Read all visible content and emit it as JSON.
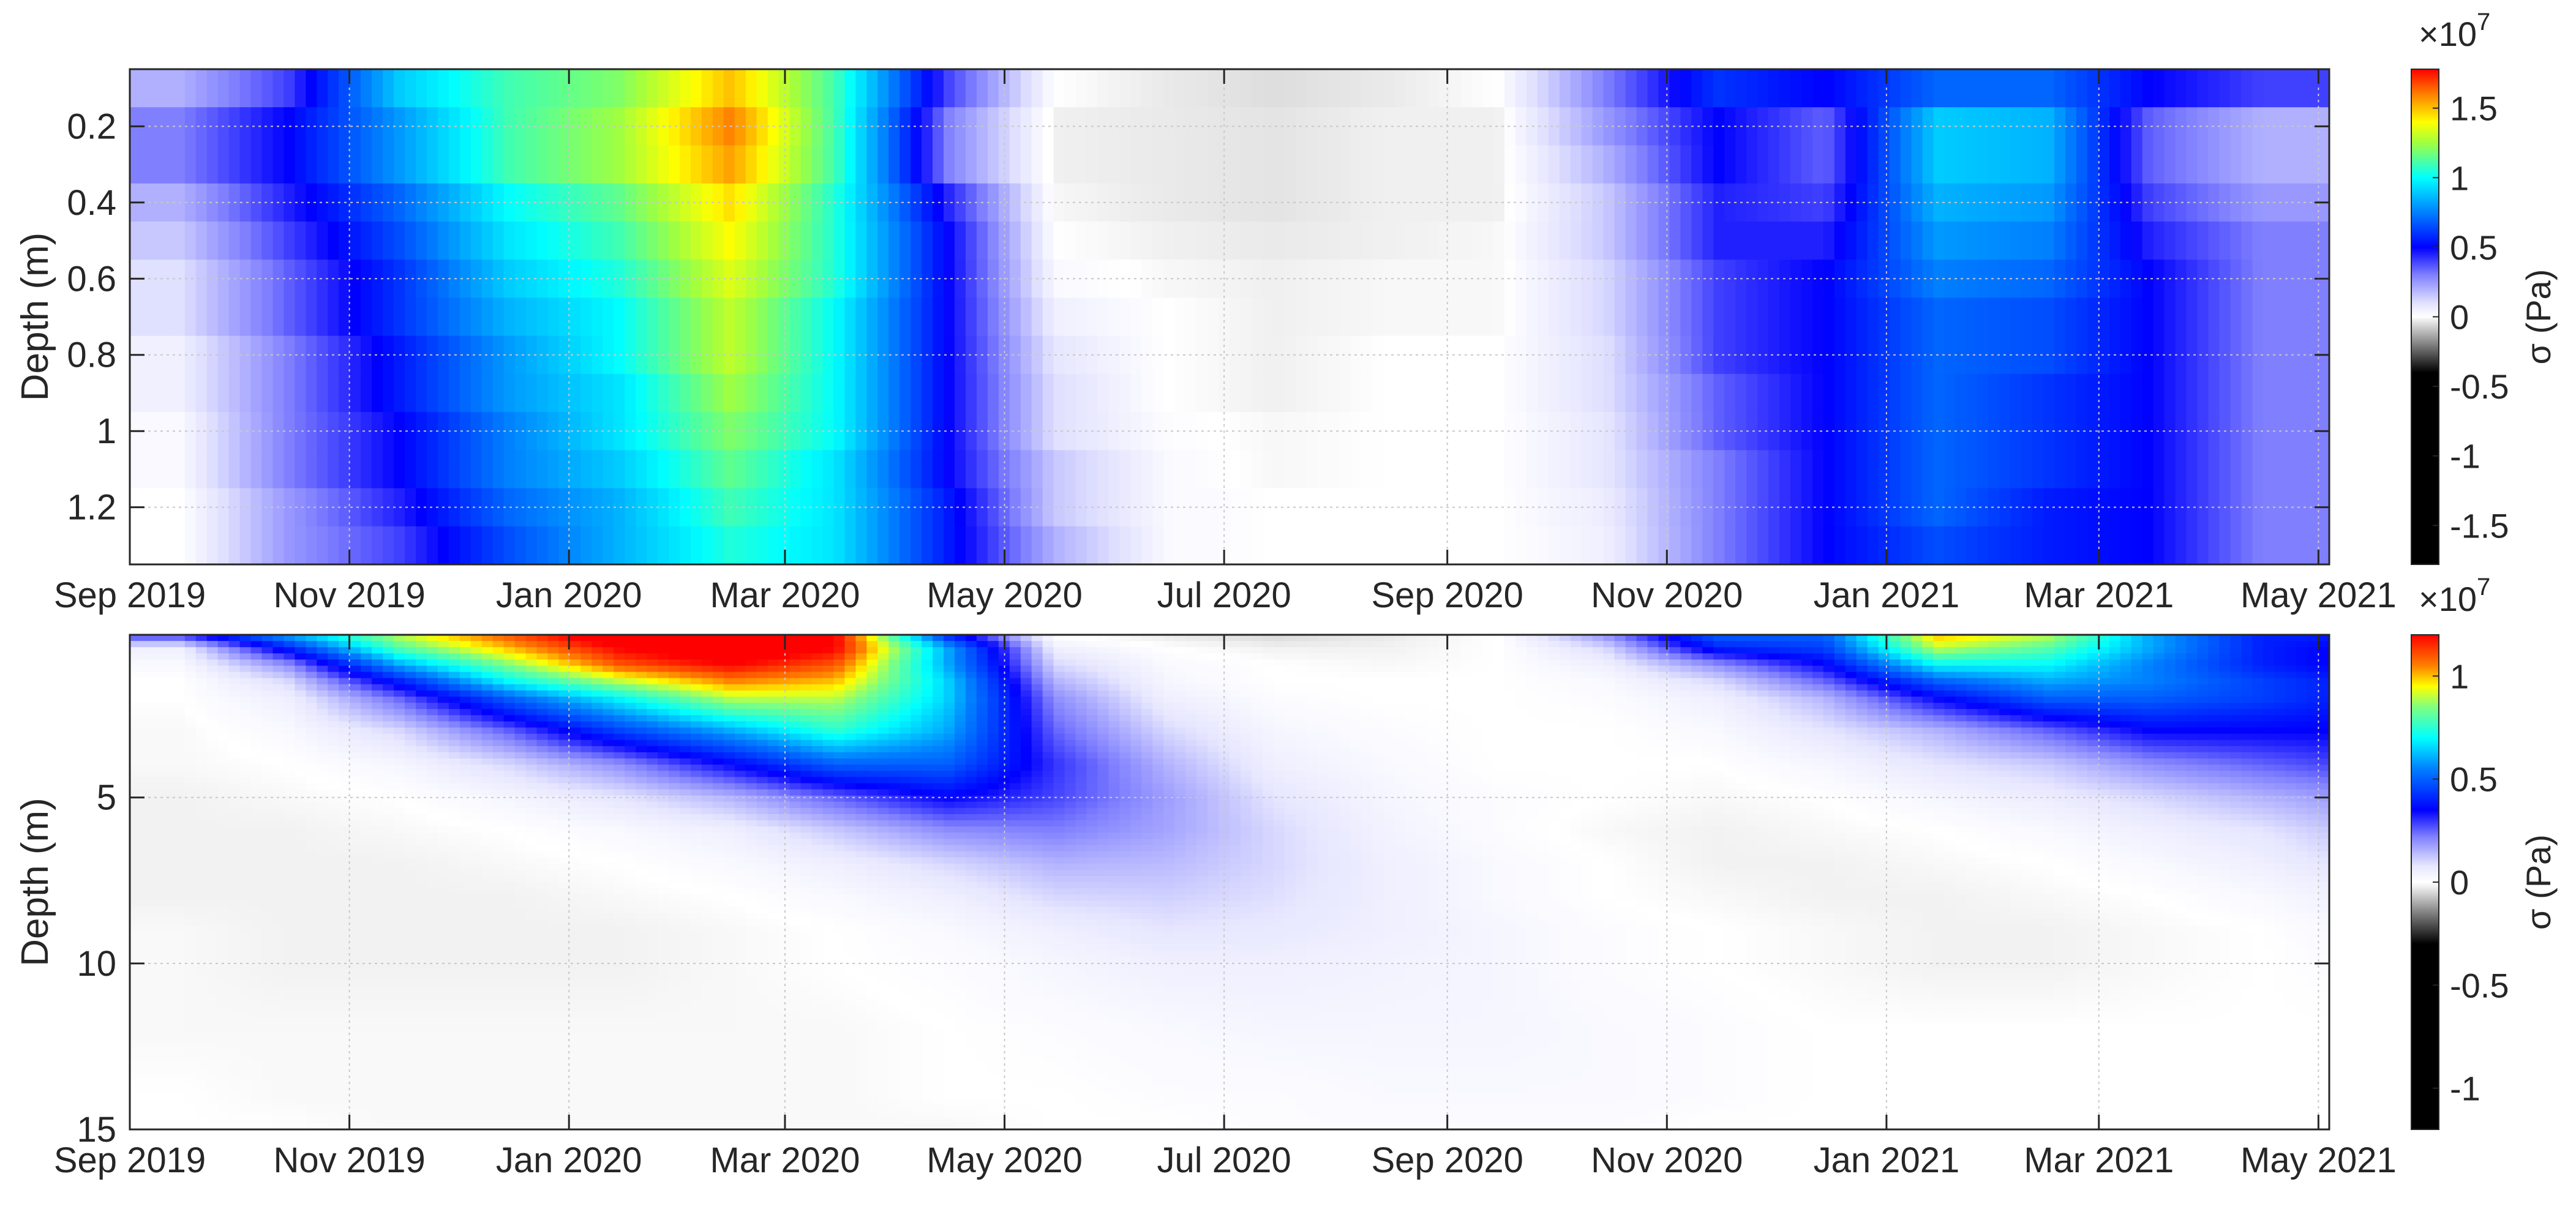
{
  "chart_data": [
    {
      "type": "heatmap",
      "title": "",
      "xlabel": "",
      "ylabel": "Depth (m)",
      "xlim": [
        "2019-09-01",
        "2021-05-04"
      ],
      "ylim": [
        0.05,
        1.35
      ],
      "y_reversed": true,
      "grid": true,
      "xticks": [
        {
          "date": "2019-09-01",
          "label": "Sep 2019"
        },
        {
          "date": "2019-11-01",
          "label": "Nov 2019"
        },
        {
          "date": "2020-01-01",
          "label": "Jan 2020"
        },
        {
          "date": "2020-03-01",
          "label": "Mar 2020"
        },
        {
          "date": "2020-05-01",
          "label": "May 2020"
        },
        {
          "date": "2020-07-01",
          "label": "Jul 2020"
        },
        {
          "date": "2020-09-01",
          "label": "Sep 2020"
        },
        {
          "date": "2020-11-01",
          "label": "Nov 2020"
        },
        {
          "date": "2021-01-01",
          "label": "Jan 2021"
        },
        {
          "date": "2021-03-01",
          "label": "Mar 2021"
        },
        {
          "date": "2021-05-01",
          "label": "May 2021"
        }
      ],
      "yticks": [
        {
          "value": 0.2,
          "label": "0.2"
        },
        {
          "value": 0.4,
          "label": "0.4"
        },
        {
          "value": 0.6,
          "label": "0.6"
        },
        {
          "value": 0.8,
          "label": "0.8"
        },
        {
          "value": 1.0,
          "label": "1"
        },
        {
          "value": 1.2,
          "label": "1.2"
        }
      ],
      "colorbar": {
        "label": "σ (Pa)",
        "multiplier_base": "×10",
        "multiplier_exp": "7",
        "clim": [
          -1.78,
          1.78
        ],
        "ticks": [
          {
            "value": 1.5,
            "label": "1.5"
          },
          {
            "value": 1,
            "label": "1"
          },
          {
            "value": 0.5,
            "label": "0.5"
          },
          {
            "value": 0,
            "label": "0"
          },
          {
            "value": -0.5,
            "label": "-0.5"
          },
          {
            "value": -1,
            "label": "-1"
          },
          {
            "value": -1.5,
            "label": "-1.5"
          }
        ],
        "colormap": [
          [
            -1.78,
            "#000000"
          ],
          [
            -0.4,
            "#000000"
          ],
          [
            -0.2,
            "#808080"
          ],
          [
            -0.02,
            "#f0f0f0"
          ],
          [
            0,
            "#ffffff"
          ],
          [
            0.1,
            "#e0e0ff"
          ],
          [
            0.3,
            "#8080ff"
          ],
          [
            0.5,
            "#0000ff"
          ],
          [
            0.75,
            "#0080ff"
          ],
          [
            1.0,
            "#00ffff"
          ],
          [
            1.25,
            "#a0ff40"
          ],
          [
            1.4,
            "#ffff00"
          ],
          [
            1.6,
            "#ff8000"
          ],
          [
            1.78,
            "#ff0000"
          ]
        ]
      },
      "value_units": "Pa ×10^7",
      "x": [
        "2019-09-15",
        "2019-10-15",
        "2019-11-15",
        "2019-12-15",
        "2020-01-15",
        "2020-02-15",
        "2020-03-15",
        "2020-04-15",
        "2020-05-15",
        "2020-06-15",
        "2020-07-15",
        "2020-08-15",
        "2020-09-15",
        "2020-10-15",
        "2020-11-15",
        "2020-12-15",
        "2021-01-15",
        "2021-02-15",
        "2021-03-15",
        "2021-04-15",
        "2021-05-04"
      ],
      "depths": [
        0.1,
        0.2,
        0.3,
        0.4,
        0.5,
        0.6,
        0.7,
        0.8,
        0.9,
        1.0,
        1.1,
        1.2,
        1.3
      ],
      "z": [
        [
          0.2,
          0.4,
          0.9,
          1.1,
          1.2,
          1.5,
          1.1,
          0.4,
          0,
          -0.03,
          -0.05,
          -0.03,
          0,
          0.3,
          0.6,
          0.5,
          0.7,
          0.7,
          0.5,
          0.4,
          0.4
        ],
        [
          0.3,
          0.5,
          0.8,
          1.1,
          1.25,
          1.6,
          1.1,
          0.3,
          -0.02,
          -0.03,
          -0.04,
          -0.02,
          -0.02,
          0.25,
          0.5,
          0.35,
          0.9,
          0.85,
          0.35,
          0.2,
          0.2
        ],
        [
          0.3,
          0.5,
          0.8,
          1.1,
          1.25,
          1.55,
          1.1,
          0.3,
          -0.02,
          -0.03,
          -0.04,
          -0.02,
          -0.02,
          0.2,
          0.5,
          0.35,
          0.9,
          0.85,
          0.35,
          0.2,
          0.2
        ],
        [
          0.2,
          0.45,
          0.7,
          1.0,
          1.15,
          1.45,
          1.05,
          0.45,
          -0.01,
          -0.03,
          -0.04,
          -0.02,
          -0.02,
          0.15,
          0.45,
          0.4,
          0.85,
          0.8,
          0.4,
          0.25,
          0.25
        ],
        [
          0.15,
          0.4,
          0.65,
          0.95,
          1.1,
          1.4,
          1.05,
          0.5,
          0,
          -0.02,
          -0.03,
          -0.02,
          -0.01,
          0.15,
          0.45,
          0.45,
          0.8,
          0.75,
          0.45,
          0.3,
          0.3
        ],
        [
          0.1,
          0.35,
          0.6,
          0.9,
          1.05,
          1.35,
          1.05,
          0.5,
          0.02,
          -0.01,
          -0.02,
          -0.01,
          -0.01,
          0.12,
          0.4,
          0.5,
          0.75,
          0.7,
          0.5,
          0.3,
          0.3
        ],
        [
          0.1,
          0.35,
          0.6,
          0.85,
          1.0,
          1.3,
          1.0,
          0.5,
          0.05,
          0,
          -0.02,
          -0.01,
          -0.01,
          0.12,
          0.4,
          0.5,
          0.7,
          0.65,
          0.5,
          0.3,
          0.3
        ],
        [
          0.05,
          0.3,
          0.55,
          0.8,
          1.0,
          1.3,
          1.0,
          0.5,
          0.08,
          0,
          -0.02,
          0,
          0,
          0.1,
          0.4,
          0.5,
          0.7,
          0.65,
          0.5,
          0.3,
          0.3
        ],
        [
          0.05,
          0.3,
          0.55,
          0.8,
          0.95,
          1.25,
          1.0,
          0.5,
          0.1,
          0,
          -0.02,
          0,
          0,
          0.1,
          0.35,
          0.5,
          0.7,
          0.6,
          0.5,
          0.3,
          0.3
        ],
        [
          0.02,
          0.3,
          0.5,
          0.75,
          0.95,
          1.2,
          1.0,
          0.5,
          0.1,
          0.01,
          -0.01,
          0,
          0,
          0.08,
          0.35,
          0.5,
          0.7,
          0.6,
          0.5,
          0.3,
          0.3
        ],
        [
          0.02,
          0.3,
          0.5,
          0.75,
          0.9,
          1.15,
          0.95,
          0.5,
          0.15,
          0.02,
          -0.01,
          0,
          0,
          0.08,
          0.3,
          0.5,
          0.7,
          0.6,
          0.5,
          0.3,
          0.3
        ],
        [
          0,
          0.25,
          0.45,
          0.7,
          0.85,
          1.1,
          0.95,
          0.55,
          0.15,
          0.02,
          0,
          0,
          0,
          0.06,
          0.3,
          0.5,
          0.7,
          0.55,
          0.5,
          0.3,
          0.3
        ],
        [
          0,
          0.25,
          0.4,
          0.65,
          0.85,
          1.05,
          0.95,
          0.55,
          0.2,
          0.02,
          0,
          0,
          0,
          0.05,
          0.3,
          0.5,
          0.65,
          0.55,
          0.5,
          0.3,
          0.3
        ]
      ]
    },
    {
      "type": "heatmap",
      "title": "",
      "xlabel": "",
      "ylabel": "Depth (m)",
      "xlim": [
        "2019-09-01",
        "2021-05-04"
      ],
      "ylim": [
        0.1,
        15
      ],
      "y_reversed": true,
      "grid": true,
      "xticks": [
        {
          "date": "2019-09-01",
          "label": "Sep 2019"
        },
        {
          "date": "2019-11-01",
          "label": "Nov 2019"
        },
        {
          "date": "2020-01-01",
          "label": "Jan 2020"
        },
        {
          "date": "2020-03-01",
          "label": "Mar 2020"
        },
        {
          "date": "2020-05-01",
          "label": "May 2020"
        },
        {
          "date": "2020-07-01",
          "label": "Jul 2020"
        },
        {
          "date": "2020-09-01",
          "label": "Sep 2020"
        },
        {
          "date": "2020-11-01",
          "label": "Nov 2020"
        },
        {
          "date": "2021-01-01",
          "label": "Jan 2021"
        },
        {
          "date": "2021-03-01",
          "label": "Mar 2021"
        },
        {
          "date": "2021-05-01",
          "label": "May 2021"
        }
      ],
      "yticks": [
        {
          "value": 5,
          "label": "5"
        },
        {
          "value": 10,
          "label": "10"
        },
        {
          "value": 15,
          "label": "15"
        }
      ],
      "colorbar": {
        "label": "σ (Pa)",
        "multiplier_base": "×10",
        "multiplier_exp": "7",
        "clim": [
          -1.2,
          1.2
        ],
        "ticks": [
          {
            "value": 1,
            "label": "1"
          },
          {
            "value": 0.5,
            "label": "0.5"
          },
          {
            "value": 0,
            "label": "0"
          },
          {
            "value": -0.5,
            "label": "-0.5"
          },
          {
            "value": -1,
            "label": "-1"
          }
        ],
        "colormap": [
          [
            -1.2,
            "#000000"
          ],
          [
            -0.3,
            "#000000"
          ],
          [
            -0.15,
            "#808080"
          ],
          [
            -0.02,
            "#f2f2f2"
          ],
          [
            0,
            "#ffffff"
          ],
          [
            0.08,
            "#e6e6ff"
          ],
          [
            0.22,
            "#8080ff"
          ],
          [
            0.35,
            "#0000ff"
          ],
          [
            0.55,
            "#0080ff"
          ],
          [
            0.7,
            "#00ffff"
          ],
          [
            0.85,
            "#80ff80"
          ],
          [
            0.95,
            "#ffff00"
          ],
          [
            1.05,
            "#ff8000"
          ],
          [
            1.2,
            "#ff0000"
          ]
        ]
      },
      "value_units": "Pa ×10^7",
      "x": [
        "2019-09-15",
        "2019-10-15",
        "2019-11-15",
        "2019-12-15",
        "2020-01-15",
        "2020-02-15",
        "2020-03-15",
        "2020-04-15",
        "2020-05-15",
        "2020-06-15",
        "2020-07-15",
        "2020-08-15",
        "2020-09-15",
        "2020-10-15",
        "2020-11-15",
        "2020-12-15",
        "2021-01-15",
        "2021-02-15",
        "2021-03-15",
        "2021-04-15",
        "2021-05-04"
      ],
      "depths": [
        0.1,
        0.5,
        1,
        1.5,
        2,
        3,
        4,
        5,
        6,
        7,
        8,
        9,
        10,
        12,
        14,
        15
      ],
      "z": [
        [
          0.3,
          0.6,
          0.9,
          1.1,
          1.3,
          1.3,
          1.2,
          0.4,
          0,
          -0.03,
          -0.05,
          -0.03,
          0,
          0.2,
          0.5,
          0.5,
          1.0,
          0.9,
          0.6,
          0.4,
          0.4
        ],
        [
          0.05,
          0.4,
          0.8,
          1.0,
          1.2,
          1.3,
          1.2,
          0.6,
          0.05,
          0,
          -0.02,
          -0.02,
          0,
          0.1,
          0.4,
          0.45,
          0.9,
          0.8,
          0.6,
          0.4,
          0.35
        ],
        [
          0.02,
          0.2,
          0.6,
          0.85,
          1.1,
          1.2,
          1.1,
          0.6,
          0.1,
          0.02,
          0,
          -0.01,
          0,
          0.05,
          0.2,
          0.35,
          0.7,
          0.7,
          0.55,
          0.4,
          0.35
        ],
        [
          0,
          0.1,
          0.4,
          0.7,
          0.9,
          1.05,
          1.0,
          0.65,
          0.15,
          0.03,
          0,
          0,
          0,
          0.02,
          0.1,
          0.25,
          0.5,
          0.6,
          0.55,
          0.45,
          0.4
        ],
        [
          0,
          0.05,
          0.25,
          0.5,
          0.7,
          0.9,
          0.9,
          0.65,
          0.2,
          0.05,
          0.01,
          0,
          0,
          0.01,
          0.05,
          0.15,
          0.35,
          0.5,
          0.5,
          0.45,
          0.4
        ],
        [
          -0.01,
          0.02,
          0.1,
          0.25,
          0.45,
          0.6,
          0.75,
          0.6,
          0.25,
          0.1,
          0.03,
          0.01,
          0,
          0,
          0.02,
          0.08,
          0.15,
          0.25,
          0.35,
          0.35,
          0.35
        ],
        [
          -0.01,
          0,
          0.03,
          0.1,
          0.2,
          0.35,
          0.5,
          0.5,
          0.3,
          0.15,
          0.05,
          0.02,
          0,
          0,
          0,
          0.03,
          0.08,
          0.12,
          0.2,
          0.25,
          0.28
        ],
        [
          -0.02,
          -0.01,
          0,
          0.03,
          0.08,
          0.15,
          0.25,
          0.35,
          0.28,
          0.18,
          0.08,
          0.03,
          0.01,
          0,
          -0.01,
          0,
          0.03,
          0.06,
          0.1,
          0.15,
          0.18
        ],
        [
          -0.02,
          -0.02,
          -0.01,
          0,
          0.02,
          0.05,
          0.12,
          0.2,
          0.22,
          0.17,
          0.1,
          0.04,
          0.01,
          -0.01,
          -0.02,
          -0.01,
          0,
          0.02,
          0.05,
          0.08,
          0.12
        ],
        [
          -0.02,
          -0.02,
          -0.02,
          -0.01,
          0,
          0.02,
          0.05,
          0.1,
          0.15,
          0.14,
          0.1,
          0.05,
          0.02,
          0,
          -0.02,
          -0.02,
          -0.01,
          0,
          0.02,
          0.05,
          0.08
        ],
        [
          -0.02,
          -0.02,
          -0.02,
          -0.02,
          -0.01,
          0,
          0.02,
          0.05,
          0.1,
          0.11,
          0.09,
          0.05,
          0.02,
          0,
          -0.01,
          -0.02,
          -0.02,
          -0.01,
          0,
          0.02,
          0.04
        ],
        [
          -0.01,
          -0.02,
          -0.02,
          -0.02,
          -0.02,
          -0.01,
          0,
          0.02,
          0.05,
          0.08,
          0.07,
          0.05,
          0.03,
          0.01,
          0,
          -0.01,
          -0.02,
          -0.02,
          -0.01,
          0,
          0.02
        ],
        [
          -0.01,
          -0.02,
          -0.02,
          -0.02,
          -0.02,
          -0.01,
          0,
          0.01,
          0.03,
          0.05,
          0.05,
          0.04,
          0.03,
          0.01,
          0,
          -0.01,
          -0.02,
          -0.02,
          -0.01,
          0,
          0.01
        ],
        [
          -0.01,
          -0.01,
          -0.01,
          -0.01,
          -0.01,
          -0.01,
          -0.01,
          0,
          0.01,
          0.02,
          0.03,
          0.03,
          0.03,
          0.02,
          0.01,
          0,
          0,
          0,
          0,
          0,
          0
        ],
        [
          0,
          -0.01,
          -0.01,
          -0.01,
          -0.01,
          -0.01,
          -0.01,
          0,
          0,
          0.01,
          0.01,
          0.02,
          0.02,
          0.02,
          0.01,
          0,
          0,
          0,
          0,
          0,
          0
        ],
        [
          0,
          0,
          -0.01,
          -0.01,
          -0.01,
          -0.01,
          -0.01,
          -0.01,
          0,
          0,
          0.01,
          0.01,
          0.01,
          0.01,
          0,
          0,
          0,
          0,
          0,
          0,
          0
        ]
      ]
    }
  ]
}
